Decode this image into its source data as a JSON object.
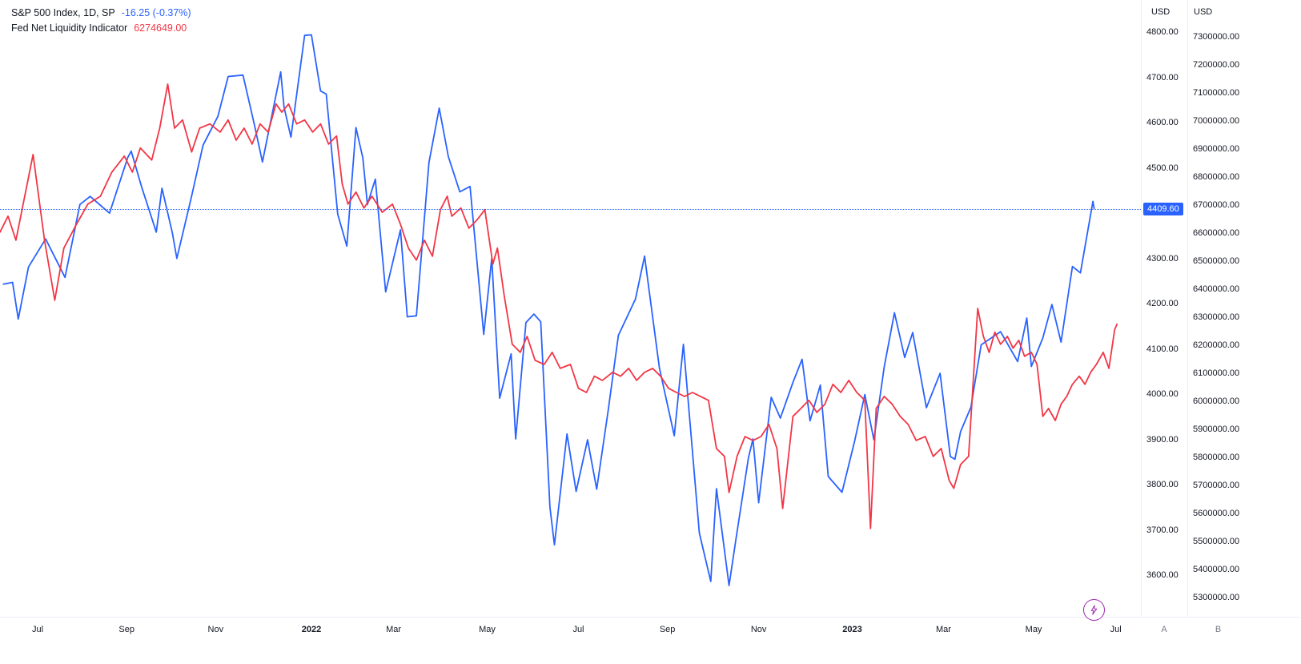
{
  "legend": {
    "row1": {
      "title": "S&P 500 Index, 1D, SP",
      "value": "-16.25 (-0.37%)"
    },
    "row2": {
      "title": "Fed Net Liquidity Indicator",
      "value": "6274649.00"
    }
  },
  "price_label": {
    "text": "4409.60",
    "value": 4409.6,
    "bg": "#2962ff"
  },
  "controls": {
    "lightning": {
      "icon": "lightning-bolt",
      "color": "#9c27b0"
    }
  },
  "chart_data": {
    "type": "line",
    "title": "S&P 500 Index vs Fed Net Liquidity Indicator",
    "legend_position": "top-left",
    "grid": false,
    "x_axis": {
      "start": "Jun 2021",
      "end": "Jul 2023",
      "ticks": [
        {
          "label": "Jul",
          "t": 0.033
        },
        {
          "label": "Sep",
          "t": 0.111
        },
        {
          "label": "Nov",
          "t": 0.189
        },
        {
          "label": "2022",
          "t": 0.273,
          "year": true
        },
        {
          "label": "Mar",
          "t": 0.345
        },
        {
          "label": "May",
          "t": 0.427
        },
        {
          "label": "Jul",
          "t": 0.507
        },
        {
          "label": "Sep",
          "t": 0.585
        },
        {
          "label": "Nov",
          "t": 0.665
        },
        {
          "label": "2023",
          "t": 0.747,
          "year": true
        },
        {
          "label": "Mar",
          "t": 0.827
        },
        {
          "label": "May",
          "t": 0.906
        },
        {
          "label": "Jul",
          "t": 0.978
        }
      ]
    },
    "y_axes": {
      "a": {
        "currency": "USD",
        "pane_id": "A",
        "range": [
          3508,
          4871
        ],
        "tick_labels": [
          "4800.00",
          "4700.00",
          "4600.00",
          "4500.00",
          "4400.00",
          "4300.00",
          "4200.00",
          "4100.00",
          "4000.00",
          "3900.00",
          "3800.00",
          "3700.00",
          "3600.00"
        ]
      },
      "b": {
        "currency": "USD",
        "pane_id": "B",
        "range": [
          5231000,
          7431000
        ],
        "tick_labels": [
          "7300000.00",
          "7200000.00",
          "7100000.00",
          "7000000.00",
          "6900000.00",
          "6800000.00",
          "6700000.00",
          "6600000.00",
          "6500000.00",
          "6400000.00",
          "6300000.00",
          "6200000.00",
          "6100000.00",
          "6000000.00",
          "5900000.00",
          "5800000.00",
          "5700000.00",
          "5600000.00",
          "5500000.00",
          "5400000.00",
          "5300000.00"
        ]
      }
    },
    "series": [
      {
        "name": "S&P 500 Index",
        "timeframe": "1D",
        "symbol": "SP",
        "color": "#2962ff",
        "axis": "a",
        "last_value": 4409.6,
        "change": "-16.25",
        "change_pct": "-0.37%",
        "points": [
          [
            0.003,
            4243
          ],
          [
            0.011,
            4247
          ],
          [
            0.016,
            4166
          ],
          [
            0.025,
            4281
          ],
          [
            0.04,
            4343
          ],
          [
            0.057,
            4258
          ],
          [
            0.07,
            4419
          ],
          [
            0.079,
            4437
          ],
          [
            0.096,
            4400
          ],
          [
            0.112,
            4523
          ],
          [
            0.115,
            4537
          ],
          [
            0.124,
            4459
          ],
          [
            0.137,
            4358
          ],
          [
            0.142,
            4455
          ],
          [
            0.151,
            4357
          ],
          [
            0.155,
            4300
          ],
          [
            0.168,
            4438
          ],
          [
            0.178,
            4550
          ],
          [
            0.191,
            4614
          ],
          [
            0.2,
            4702
          ],
          [
            0.213,
            4705
          ],
          [
            0.223,
            4595
          ],
          [
            0.23,
            4513
          ],
          [
            0.246,
            4712
          ],
          [
            0.249,
            4634
          ],
          [
            0.255,
            4568
          ],
          [
            0.267,
            4793
          ],
          [
            0.273,
            4794
          ],
          [
            0.281,
            4670
          ],
          [
            0.286,
            4663
          ],
          [
            0.296,
            4398
          ],
          [
            0.304,
            4327
          ],
          [
            0.312,
            4589
          ],
          [
            0.318,
            4522
          ],
          [
            0.322,
            4419
          ],
          [
            0.329,
            4475
          ],
          [
            0.338,
            4226
          ],
          [
            0.351,
            4363
          ],
          [
            0.357,
            4171
          ],
          [
            0.365,
            4173
          ],
          [
            0.376,
            4512
          ],
          [
            0.385,
            4632
          ],
          [
            0.393,
            4525
          ],
          [
            0.403,
            4447
          ],
          [
            0.412,
            4459
          ],
          [
            0.424,
            4132
          ],
          [
            0.431,
            4300
          ],
          [
            0.438,
            3991
          ],
          [
            0.448,
            4089
          ],
          [
            0.452,
            3901
          ],
          [
            0.461,
            4158
          ],
          [
            0.468,
            4177
          ],
          [
            0.474,
            4160
          ],
          [
            0.482,
            3750
          ],
          [
            0.486,
            3667
          ],
          [
            0.497,
            3912
          ],
          [
            0.505,
            3785
          ],
          [
            0.515,
            3899
          ],
          [
            0.523,
            3790
          ],
          [
            0.533,
            3962
          ],
          [
            0.542,
            4130
          ],
          [
            0.557,
            4210
          ],
          [
            0.565,
            4305
          ],
          [
            0.578,
            4058
          ],
          [
            0.591,
            3908
          ],
          [
            0.599,
            4110
          ],
          [
            0.613,
            3693
          ],
          [
            0.623,
            3586
          ],
          [
            0.628,
            3791
          ],
          [
            0.639,
            3577
          ],
          [
            0.645,
            3678
          ],
          [
            0.656,
            3859
          ],
          [
            0.66,
            3901
          ],
          [
            0.665,
            3760
          ],
          [
            0.676,
            3993
          ],
          [
            0.684,
            3947
          ],
          [
            0.695,
            4026
          ],
          [
            0.703,
            4077
          ],
          [
            0.71,
            3941
          ],
          [
            0.719,
            4020
          ],
          [
            0.726,
            3818
          ],
          [
            0.738,
            3783
          ],
          [
            0.749,
            3895
          ],
          [
            0.758,
            3999
          ],
          [
            0.766,
            3899
          ],
          [
            0.775,
            4060
          ],
          [
            0.784,
            4180
          ],
          [
            0.793,
            4081
          ],
          [
            0.8,
            4136
          ],
          [
            0.812,
            3970
          ],
          [
            0.824,
            4046
          ],
          [
            0.833,
            3862
          ],
          [
            0.837,
            3856
          ],
          [
            0.842,
            3917
          ],
          [
            0.851,
            3971
          ],
          [
            0.86,
            4109
          ],
          [
            0.877,
            4138
          ],
          [
            0.892,
            4072
          ],
          [
            0.9,
            4168
          ],
          [
            0.904,
            4061
          ],
          [
            0.914,
            4124
          ],
          [
            0.922,
            4198
          ],
          [
            0.93,
            4115
          ],
          [
            0.94,
            4282
          ],
          [
            0.947,
            4268
          ],
          [
            0.958,
            4426
          ],
          [
            0.959,
            4410
          ]
        ]
      },
      {
        "name": "Fed Net Liquidity Indicator",
        "color": "#f23645",
        "axis": "b",
        "last_value": 6274649.0,
        "points": [
          [
            0.0,
            6603000
          ],
          [
            0.007,
            6660000
          ],
          [
            0.014,
            6574000
          ],
          [
            0.021,
            6717000
          ],
          [
            0.029,
            6880000
          ],
          [
            0.039,
            6574000
          ],
          [
            0.048,
            6360000
          ],
          [
            0.056,
            6546000
          ],
          [
            0.067,
            6631000
          ],
          [
            0.077,
            6703000
          ],
          [
            0.088,
            6731000
          ],
          [
            0.098,
            6817000
          ],
          [
            0.109,
            6874000
          ],
          [
            0.116,
            6817000
          ],
          [
            0.123,
            6903000
          ],
          [
            0.133,
            6860000
          ],
          [
            0.14,
            6974000
          ],
          [
            0.147,
            7131000
          ],
          [
            0.153,
            6974000
          ],
          [
            0.16,
            7003000
          ],
          [
            0.168,
            6889000
          ],
          [
            0.175,
            6974000
          ],
          [
            0.184,
            6989000
          ],
          [
            0.193,
            6960000
          ],
          [
            0.2,
            7003000
          ],
          [
            0.207,
            6931000
          ],
          [
            0.214,
            6974000
          ],
          [
            0.221,
            6917000
          ],
          [
            0.228,
            6989000
          ],
          [
            0.235,
            6960000
          ],
          [
            0.242,
            7060000
          ],
          [
            0.247,
            7031000
          ],
          [
            0.253,
            7060000
          ],
          [
            0.26,
            6989000
          ],
          [
            0.267,
            7003000
          ],
          [
            0.274,
            6960000
          ],
          [
            0.281,
            6989000
          ],
          [
            0.288,
            6917000
          ],
          [
            0.295,
            6946000
          ],
          [
            0.3,
            6774000
          ],
          [
            0.305,
            6703000
          ],
          [
            0.312,
            6746000
          ],
          [
            0.319,
            6689000
          ],
          [
            0.326,
            6731000
          ],
          [
            0.335,
            6674000
          ],
          [
            0.344,
            6703000
          ],
          [
            0.351,
            6631000
          ],
          [
            0.358,
            6546000
          ],
          [
            0.365,
            6503000
          ],
          [
            0.372,
            6574000
          ],
          [
            0.379,
            6517000
          ],
          [
            0.386,
            6683000
          ],
          [
            0.392,
            6731000
          ],
          [
            0.396,
            6660000
          ],
          [
            0.404,
            6689000
          ],
          [
            0.411,
            6617000
          ],
          [
            0.418,
            6646000
          ],
          [
            0.425,
            6683000
          ],
          [
            0.432,
            6489000
          ],
          [
            0.436,
            6546000
          ],
          [
            0.442,
            6374000
          ],
          [
            0.449,
            6203000
          ],
          [
            0.456,
            6174000
          ],
          [
            0.462,
            6231000
          ],
          [
            0.469,
            6146000
          ],
          [
            0.477,
            6131000
          ],
          [
            0.484,
            6174000
          ],
          [
            0.491,
            6117000
          ],
          [
            0.5,
            6131000
          ],
          [
            0.507,
            6046000
          ],
          [
            0.514,
            6031000
          ],
          [
            0.521,
            6089000
          ],
          [
            0.528,
            6074000
          ],
          [
            0.537,
            6103000
          ],
          [
            0.544,
            6089000
          ],
          [
            0.551,
            6117000
          ],
          [
            0.558,
            6074000
          ],
          [
            0.565,
            6103000
          ],
          [
            0.572,
            6117000
          ],
          [
            0.579,
            6089000
          ],
          [
            0.586,
            6046000
          ],
          [
            0.593,
            6031000
          ],
          [
            0.6,
            6017000
          ],
          [
            0.607,
            6031000
          ],
          [
            0.614,
            6017000
          ],
          [
            0.621,
            6003000
          ],
          [
            0.628,
            5831000
          ],
          [
            0.635,
            5803000
          ],
          [
            0.639,
            5674000
          ],
          [
            0.646,
            5803000
          ],
          [
            0.653,
            5874000
          ],
          [
            0.66,
            5860000
          ],
          [
            0.667,
            5874000
          ],
          [
            0.674,
            5917000
          ],
          [
            0.681,
            5831000
          ],
          [
            0.686,
            5617000
          ],
          [
            0.695,
            5946000
          ],
          [
            0.702,
            5974000
          ],
          [
            0.709,
            6003000
          ],
          [
            0.716,
            5960000
          ],
          [
            0.723,
            5989000
          ],
          [
            0.73,
            6060000
          ],
          [
            0.737,
            6031000
          ],
          [
            0.744,
            6074000
          ],
          [
            0.751,
            6031000
          ],
          [
            0.758,
            6003000
          ],
          [
            0.763,
            5546000
          ],
          [
            0.768,
            5974000
          ],
          [
            0.775,
            6017000
          ],
          [
            0.782,
            5989000
          ],
          [
            0.789,
            5946000
          ],
          [
            0.796,
            5917000
          ],
          [
            0.803,
            5860000
          ],
          [
            0.811,
            5874000
          ],
          [
            0.818,
            5803000
          ],
          [
            0.825,
            5831000
          ],
          [
            0.832,
            5717000
          ],
          [
            0.836,
            5689000
          ],
          [
            0.842,
            5774000
          ],
          [
            0.849,
            5803000
          ],
          [
            0.857,
            6331000
          ],
          [
            0.862,
            6231000
          ],
          [
            0.867,
            6174000
          ],
          [
            0.872,
            6246000
          ],
          [
            0.877,
            6203000
          ],
          [
            0.883,
            6231000
          ],
          [
            0.888,
            6189000
          ],
          [
            0.893,
            6217000
          ],
          [
            0.898,
            6160000
          ],
          [
            0.904,
            6174000
          ],
          [
            0.909,
            6131000
          ],
          [
            0.914,
            5946000
          ],
          [
            0.919,
            5974000
          ],
          [
            0.925,
            5931000
          ],
          [
            0.93,
            5989000
          ],
          [
            0.935,
            6017000
          ],
          [
            0.94,
            6060000
          ],
          [
            0.946,
            6089000
          ],
          [
            0.951,
            6060000
          ],
          [
            0.956,
            6103000
          ],
          [
            0.961,
            6131000
          ],
          [
            0.967,
            6174000
          ],
          [
            0.972,
            6117000
          ],
          [
            0.977,
            6254000
          ],
          [
            0.979,
            6274649
          ]
        ]
      }
    ]
  }
}
